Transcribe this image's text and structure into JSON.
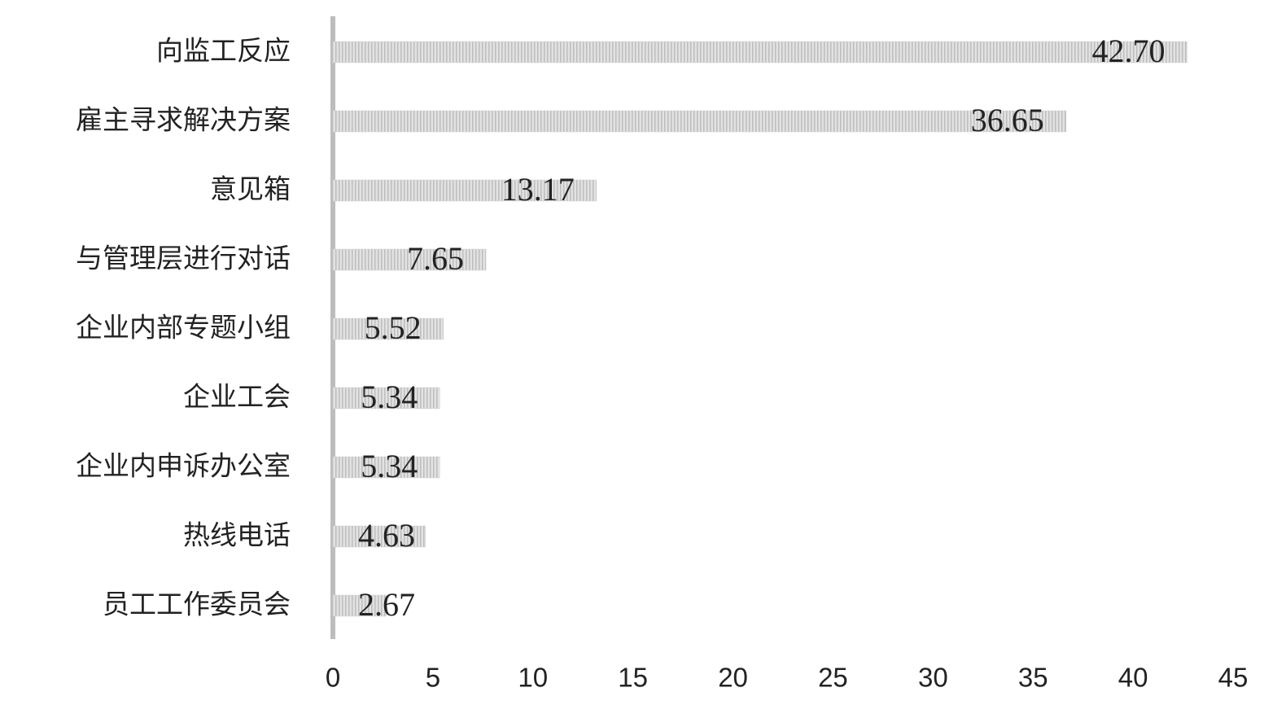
{
  "chart_data": {
    "type": "bar",
    "orientation": "horizontal",
    "categories": [
      "向监工反应",
      "雇主寻求解决方案",
      "意见箱",
      "与管理层进行对话",
      "企业内部专题小组",
      "企业工会",
      "企业内申诉办公室",
      "热线电话",
      "员工工作委员会"
    ],
    "values": [
      42.7,
      36.65,
      13.17,
      7.65,
      5.52,
      5.34,
      5.34,
      4.63,
      2.67
    ],
    "value_labels": [
      "42.70",
      "36.65",
      "13.17",
      "7.65",
      "5.52",
      "5.34",
      "5.34",
      "4.63",
      "2.67"
    ],
    "color": "#d2d2d2",
    "xlim": [
      0,
      45
    ],
    "xticks": [
      0,
      5,
      10,
      15,
      20,
      25,
      30,
      35,
      40,
      45
    ],
    "grid": false
  }
}
